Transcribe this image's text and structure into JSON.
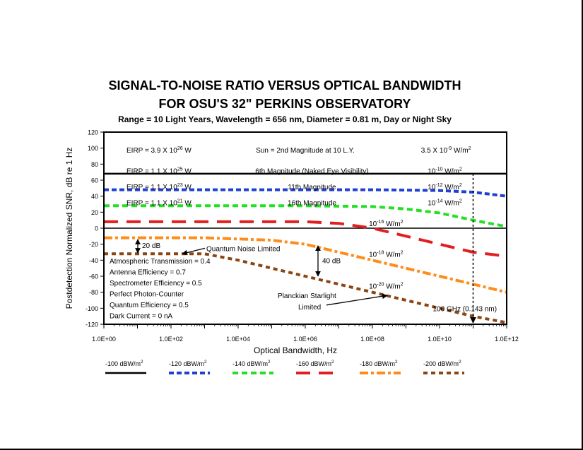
{
  "chart_data": {
    "type": "line",
    "title": "SIGNAL-TO-NOISE RATIO VERSUS OPTICAL BANDWIDTH",
    "title_line2": "FOR OSU'S 32\" PERKINS OBSERVATORY",
    "subtitle": "Range = 10 Light Years, Wavelength = 656 nm, Diameter = 0.81 m, Day or Night Sky",
    "xlabel": "Optical Bandwidth, Hz",
    "ylabel": "Postdetection Normalized SNR, dB re 1 Hz",
    "x_scale": "log",
    "xlim": [
      1,
      1000000000000
    ],
    "ylim": [
      -120,
      120
    ],
    "x_ticks": [
      {
        "v": 1,
        "label": "1.0E+00"
      },
      {
        "v": 100,
        "label": "1.0E+02"
      },
      {
        "v": 10000,
        "label": "1.0E+04"
      },
      {
        "v": 1000000,
        "label": "1.0E+06"
      },
      {
        "v": 100000000,
        "label": "1.0E+08"
      },
      {
        "v": 10000000000,
        "label": "1.0E+10"
      },
      {
        "v": 1000000000000,
        "label": "1.0E+12"
      }
    ],
    "y_ticks": [
      {
        "v": 120,
        "label": "120"
      },
      {
        "v": 100,
        "label": "100"
      },
      {
        "v": 80,
        "label": "80"
      },
      {
        "v": 60,
        "label": "60"
      },
      {
        "v": 40,
        "label": "40"
      },
      {
        "v": 20,
        "label": "20"
      },
      {
        "v": 0,
        "label": "0"
      },
      {
        "v": -20,
        "label": "-20"
      },
      {
        "v": -40,
        "label": "-40"
      },
      {
        "v": -60,
        "label": "-60"
      },
      {
        "v": -80,
        "label": "-80"
      },
      {
        "v": -100,
        "label": "-100"
      },
      {
        "v": -120,
        "label": "-120"
      }
    ],
    "series": [
      {
        "name": "-100 dBW/m",
        "sup": "2",
        "color": "#000000",
        "dash": "",
        "width": 2.5,
        "x": [
          1,
          1000000000000
        ],
        "y": [
          68,
          68
        ]
      },
      {
        "name": "-120 dBW/m",
        "sup": "2",
        "color": "#1f3fd6",
        "dash": "7,4",
        "width": 4,
        "x": [
          1,
          100000,
          100000000,
          10000000000,
          100000000000,
          1000000000000
        ],
        "y": [
          48,
          48,
          48,
          47,
          45,
          40
        ]
      },
      {
        "name": "-140 dBW/m",
        "sup": "2",
        "color": "#22e022",
        "dash": "8,5",
        "width": 4,
        "x": [
          1,
          10000,
          1000000,
          100000000,
          1000000000,
          10000000000,
          100000000000,
          1000000000000
        ],
        "y": [
          28,
          28,
          28,
          27,
          24,
          19,
          10,
          2
        ]
      },
      {
        "name": "-160 dBW/m",
        "sup": "2",
        "color": "#e02020",
        "dash": "20,12",
        "width": 4,
        "x": [
          1,
          10000,
          1000000,
          10000000,
          100000000,
          1000000000,
          10000000000,
          100000000000,
          1000000000000
        ],
        "y": [
          8,
          8,
          8,
          6,
          0,
          -10,
          -20,
          -30,
          -35
        ]
      },
      {
        "name": "-180 dBW/m",
        "sup": "2",
        "color": "#ff8c1a",
        "dash": "12,4,4,4",
        "width": 4,
        "x": [
          1,
          1000,
          100000,
          1000000,
          10000000,
          100000000,
          1000000000,
          10000000000,
          100000000000,
          1000000000000
        ],
        "y": [
          -12,
          -12,
          -15,
          -20,
          -30,
          -40,
          -50,
          -60,
          -70,
          -80
        ]
      },
      {
        "name": "-200 dBW/m",
        "sup": "2",
        "color": "#8b4513",
        "dash": "6,5",
        "width": 4,
        "x": [
          1,
          100,
          1000,
          10000,
          100000,
          1000000,
          10000000,
          100000000,
          1000000000,
          10000000000,
          100000000000,
          1000000000000
        ],
        "y": [
          -32,
          -32,
          -32,
          -40,
          -50,
          -60,
          -70,
          -80,
          -90,
          -100,
          -110,
          -118
        ]
      }
    ],
    "annotations": {
      "eirp": [
        {
          "pre": "EIRP = 3.9 X 10",
          "sup": "26",
          "post": " W",
          "y": 98
        },
        {
          "pre": "EIRP = 1.1 X 10",
          "sup": "25",
          "post": " W",
          "y": 72
        },
        {
          "pre": "EIRP = 1.1 X 10",
          "sup": "23",
          "post": " W",
          "y": 52
        },
        {
          "pre": "EIRP = 1.1 X 10",
          "sup": "21",
          "post": " W",
          "y": 32
        }
      ],
      "magnitudes": [
        {
          "text": "Sun = 2nd Magnitude at 10 L.Y.",
          "y": 98,
          "xe": 6.0
        },
        {
          "text": "6th Magnitude (Naked Eye Visibility)",
          "y": 72,
          "xe": 6.2
        },
        {
          "text": "11th Magnitude",
          "y": 52,
          "xe": 6.2
        },
        {
          "text": "16th Magnitude",
          "y": 32,
          "xe": 6.2
        }
      ],
      "flux": [
        {
          "pre": "3.5 X 10",
          "sup": "-9",
          "post": " W/m",
          "sup2": "2",
          "y": 98,
          "xe": 9.7
        },
        {
          "pre": "10",
          "sup": "-10",
          "post": " W/m",
          "sup2": "2",
          "y": 72,
          "xe": 9.9
        },
        {
          "pre": "10",
          "sup": "-12",
          "post": " W/m",
          "sup2": "2",
          "y": 52,
          "xe": 9.9
        },
        {
          "pre": "10",
          "sup": "-14",
          "post": " W/m",
          "sup2": "2",
          "y": 32,
          "xe": 9.9
        },
        {
          "pre": "10",
          "sup": "-16",
          "post": " W/m",
          "sup2": "2",
          "y": 6,
          "xe": 8.15
        },
        {
          "pre": "10",
          "sup": "-18",
          "post": " W/m",
          "sup2": "2",
          "y": -32,
          "xe": 8.15
        },
        {
          "pre": "10",
          "sup": "-20",
          "post": " W/m",
          "sup2": "2",
          "y": -72,
          "xe": 8.15
        }
      ],
      "params": [
        "Atmospheric Transmission = 0.4",
        "Antenna Efficiency = 0.7",
        "Spectrometer Efficiency = 0.5",
        "Perfect Photon-Counter",
        "Quantum Efficiency = 0.5",
        "Dark Current = 0 nA"
      ],
      "twenty_db": "20 dB",
      "forty_db": "40 dB",
      "quantum_noise": "Quantum Noise Limited",
      "planckian": "Planckian Starlight",
      "planckian_2": "Limited",
      "ghz_marker": "100 GHz (0.143 nm)",
      "ghz_x": 100000000000
    }
  }
}
